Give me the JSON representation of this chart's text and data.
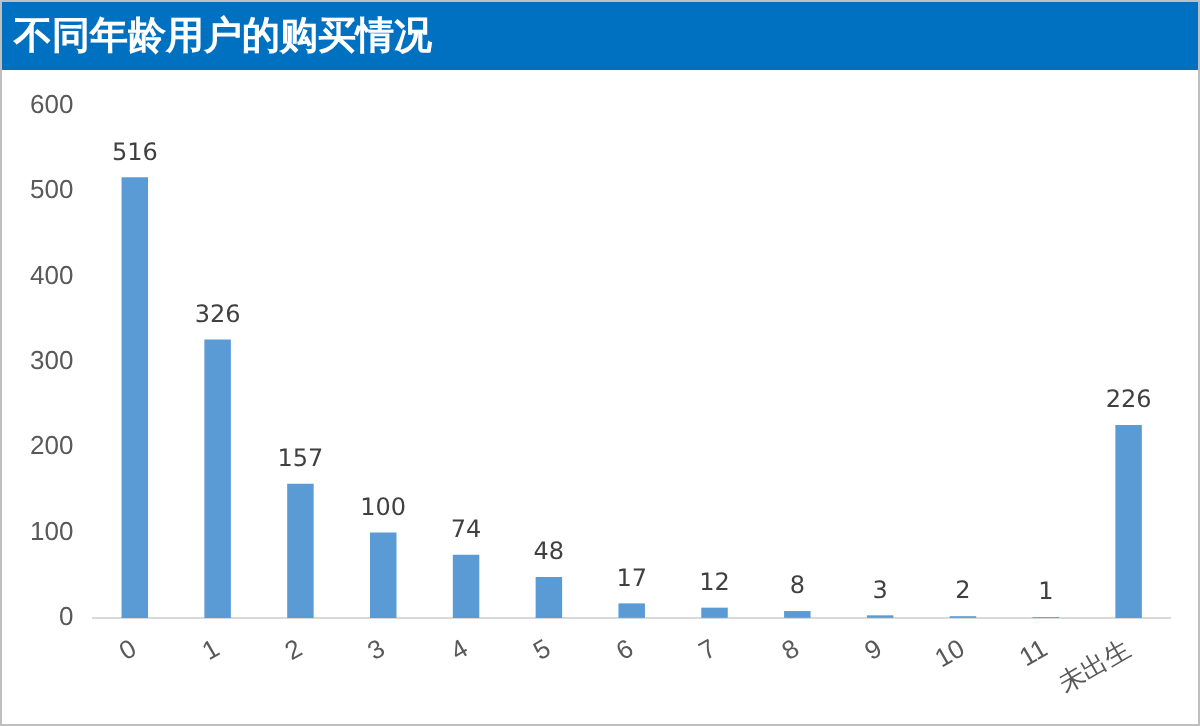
{
  "chart_data": {
    "type": "bar",
    "title": "不同年龄用户的购买情况",
    "categories": [
      "0",
      "1",
      "2",
      "3",
      "4",
      "5",
      "6",
      "7",
      "8",
      "9",
      "10",
      "11",
      "未出生"
    ],
    "values": [
      516,
      326,
      157,
      100,
      74,
      48,
      17,
      12,
      8,
      3,
      2,
      1,
      226
    ],
    "color": "#5b9bd5",
    "ylim": [
      0,
      600
    ],
    "yticks": [
      0,
      100,
      200,
      300,
      400,
      500,
      600
    ],
    "grid": false,
    "data_labels": true
  }
}
